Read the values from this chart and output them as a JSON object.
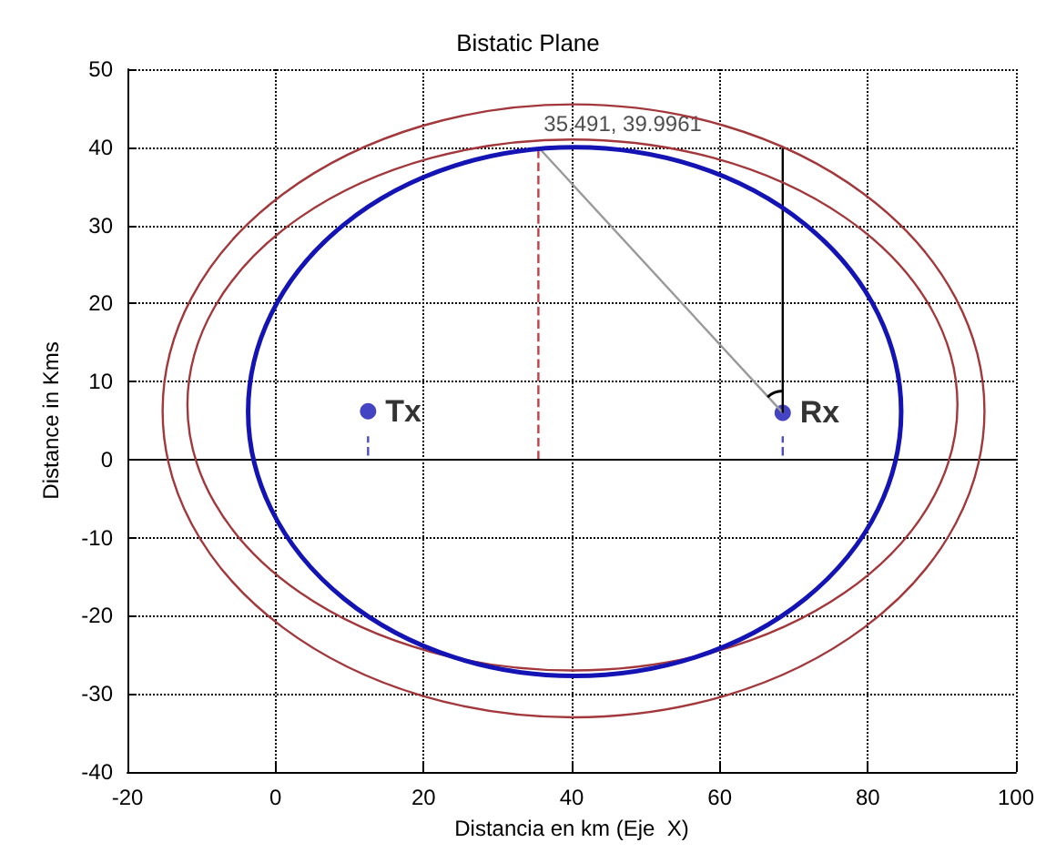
{
  "chart_data": {
    "type": "line",
    "title": "Bistatic Plane",
    "xlabel": "Distancia en km (Eje  X)",
    "ylabel": "Distance in Kms",
    "xlim": [
      -20,
      100
    ],
    "xticks": [
      -20,
      0,
      20,
      40,
      60,
      80,
      100
    ],
    "ylim": [
      -40,
      50
    ],
    "yticks": [
      -40,
      -30,
      -20,
      -10,
      0,
      10,
      20,
      30,
      40,
      50
    ],
    "grid": true,
    "legend": false,
    "marker": "none",
    "line_style": "solid",
    "ref_lines": [
      {
        "axis": "y",
        "value": 0,
        "color": "#000000",
        "line_style": "solid"
      }
    ],
    "annotations": [
      {
        "text": "35.491, 39.9961",
        "x": 35.491,
        "y": 39.9961
      }
    ],
    "series": [
      {
        "color": "#c0404a",
        "line_style": "dashed",
        "x": [
          35.5,
          35.5
        ],
        "values": [
          0,
          40
        ]
      },
      {
        "color": "#999999",
        "x": [
          35.5,
          68.5
        ],
        "values": [
          40,
          6
        ]
      },
      {
        "color": "#000000",
        "x": [
          68.5,
          68.5
        ],
        "values": [
          6,
          40
        ]
      },
      {
        "color": "#4a4ad0",
        "line_style": "dashed",
        "x": [
          12.5,
          12.5
        ],
        "values": [
          0.5,
          3
        ]
      },
      {
        "color": "#4a4ad0",
        "line_style": "dashed",
        "x": [
          68.5,
          68.5
        ],
        "values": [
          0.5,
          3
        ]
      },
      {
        "type": "scatter",
        "name": "Tx",
        "color": "#1414b4",
        "marker": "circle",
        "x": [
          12.5
        ],
        "values": [
          6.2
        ]
      },
      {
        "type": "scatter",
        "name": "Rx",
        "color": "#1414b4",
        "marker": "circle",
        "x": [
          68.5
        ],
        "values": [
          6
        ]
      }
    ]
  }
}
